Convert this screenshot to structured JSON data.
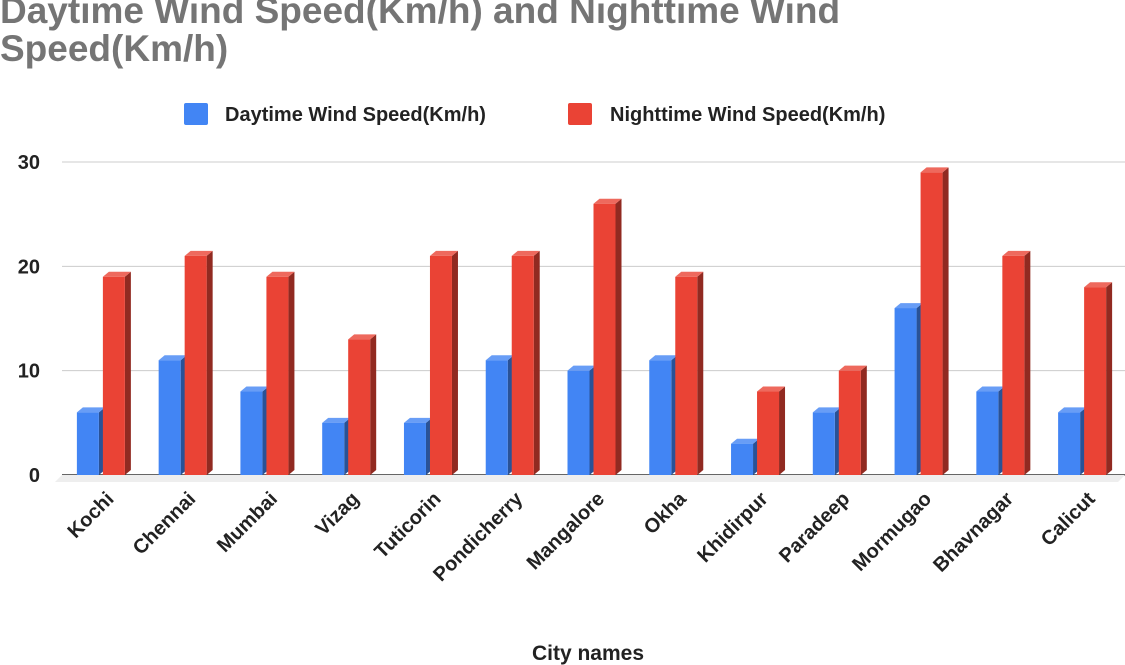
{
  "chart_data": {
    "type": "bar",
    "title": "Daytime Wind Speed(Km/h) and Nighttime Wind Speed(Km/h)",
    "xlabel": "City names",
    "ylabel": "",
    "ylim": [
      0,
      30
    ],
    "yticks": [
      0,
      10,
      20,
      30
    ],
    "grid": true,
    "legend_position": "top",
    "categories": [
      "Kochi",
      "Chennai",
      "Mumbai",
      "Vizag",
      "Tuticorin",
      "Pondicherry",
      "Mangalore",
      "Okha",
      "Khidirpur",
      "Paradeep",
      "Mormugao",
      "Bhavnagar",
      "Calicut"
    ],
    "series": [
      {
        "name": "Daytime Wind Speed(Km/h)",
        "color": "#4285f4",
        "values": [
          6,
          11,
          8,
          5,
          5,
          11,
          10,
          11,
          3,
          6,
          16,
          8,
          6
        ]
      },
      {
        "name": "Nighttime Wind Speed(Km/h)",
        "color": "#ea4335",
        "values": [
          19,
          21,
          19,
          13,
          21,
          21,
          26,
          19,
          8,
          10,
          29,
          21,
          18
        ]
      }
    ]
  }
}
